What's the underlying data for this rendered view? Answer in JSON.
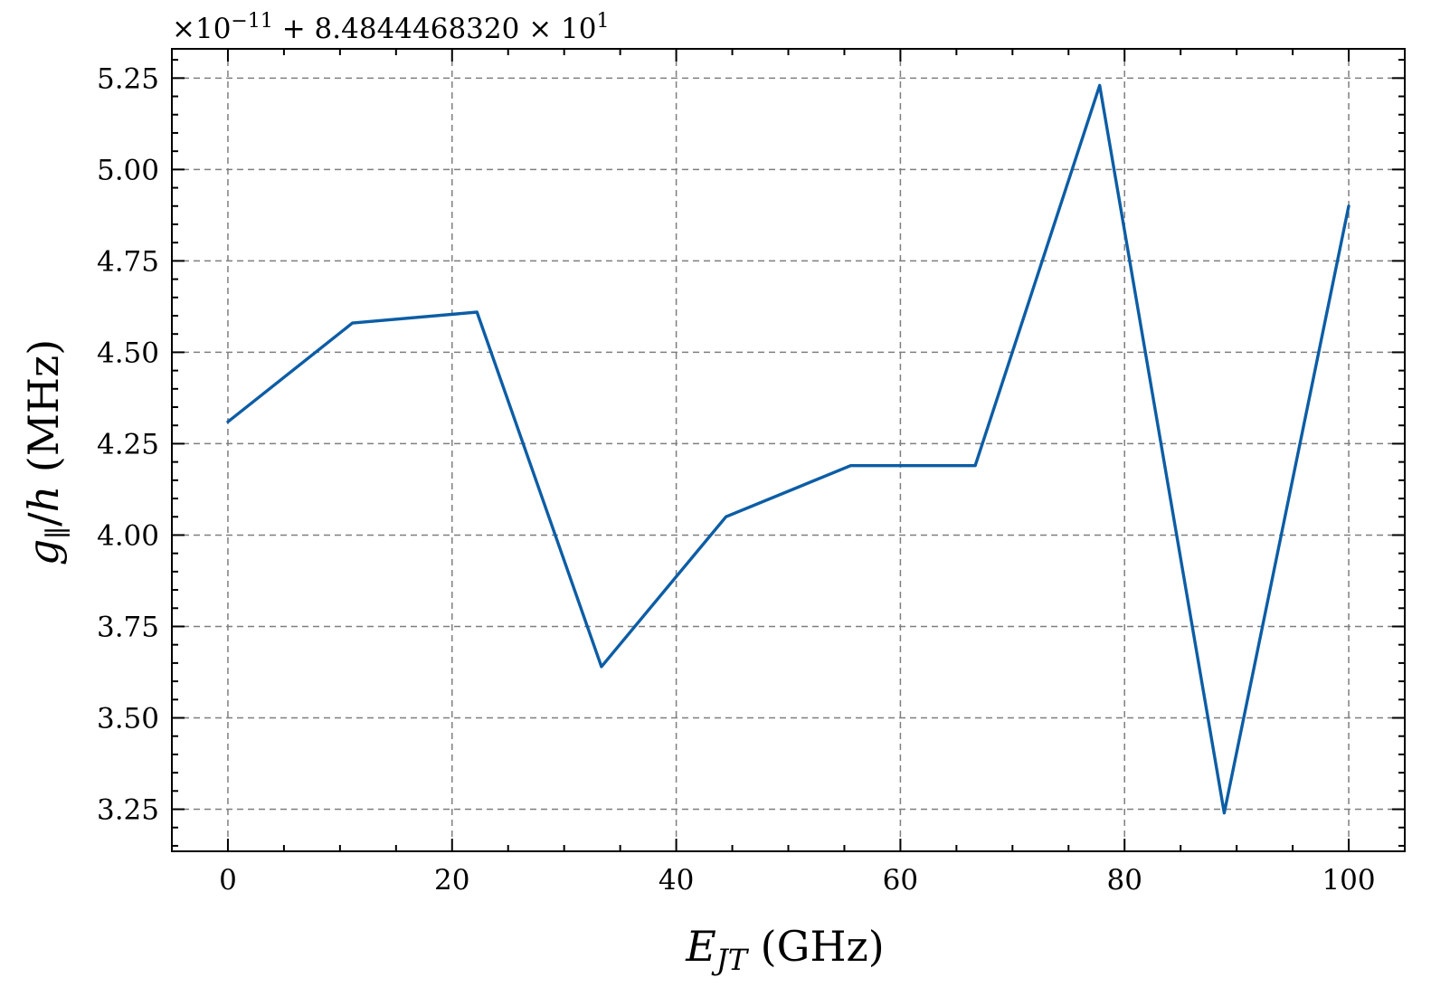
{
  "chart_data": {
    "type": "line",
    "xlabel": "E_JT (GHz)",
    "ylabel": "g_∥/h (MHz)",
    "offset_text": "×10⁻¹¹ + 8.4844468320 × 10¹",
    "xlim": [
      -5,
      105
    ],
    "ylim": [
      3.135,
      5.33
    ],
    "x_ticks": [
      0,
      20,
      40,
      60,
      80,
      100
    ],
    "x_tick_labels": [
      "0",
      "20",
      "40",
      "60",
      "80",
      "100"
    ],
    "x_minor_step": 5,
    "y_ticks": [
      3.25,
      3.5,
      3.75,
      4.0,
      4.25,
      4.5,
      4.75,
      5.0,
      5.25
    ],
    "y_tick_labels": [
      "3.25",
      "3.50",
      "3.75",
      "4.00",
      "4.25",
      "4.50",
      "4.75",
      "5.00",
      "5.25"
    ],
    "y_minor_step": 0.05,
    "grid": true,
    "series": [
      {
        "color": "#0c5da5",
        "x": [
          0,
          11.11,
          22.22,
          33.33,
          44.44,
          55.56,
          66.67,
          77.78,
          88.89,
          100
        ],
        "y": [
          4.31,
          4.58,
          4.61,
          3.64,
          4.05,
          4.19,
          4.19,
          5.23,
          3.24,
          4.9
        ]
      }
    ]
  }
}
